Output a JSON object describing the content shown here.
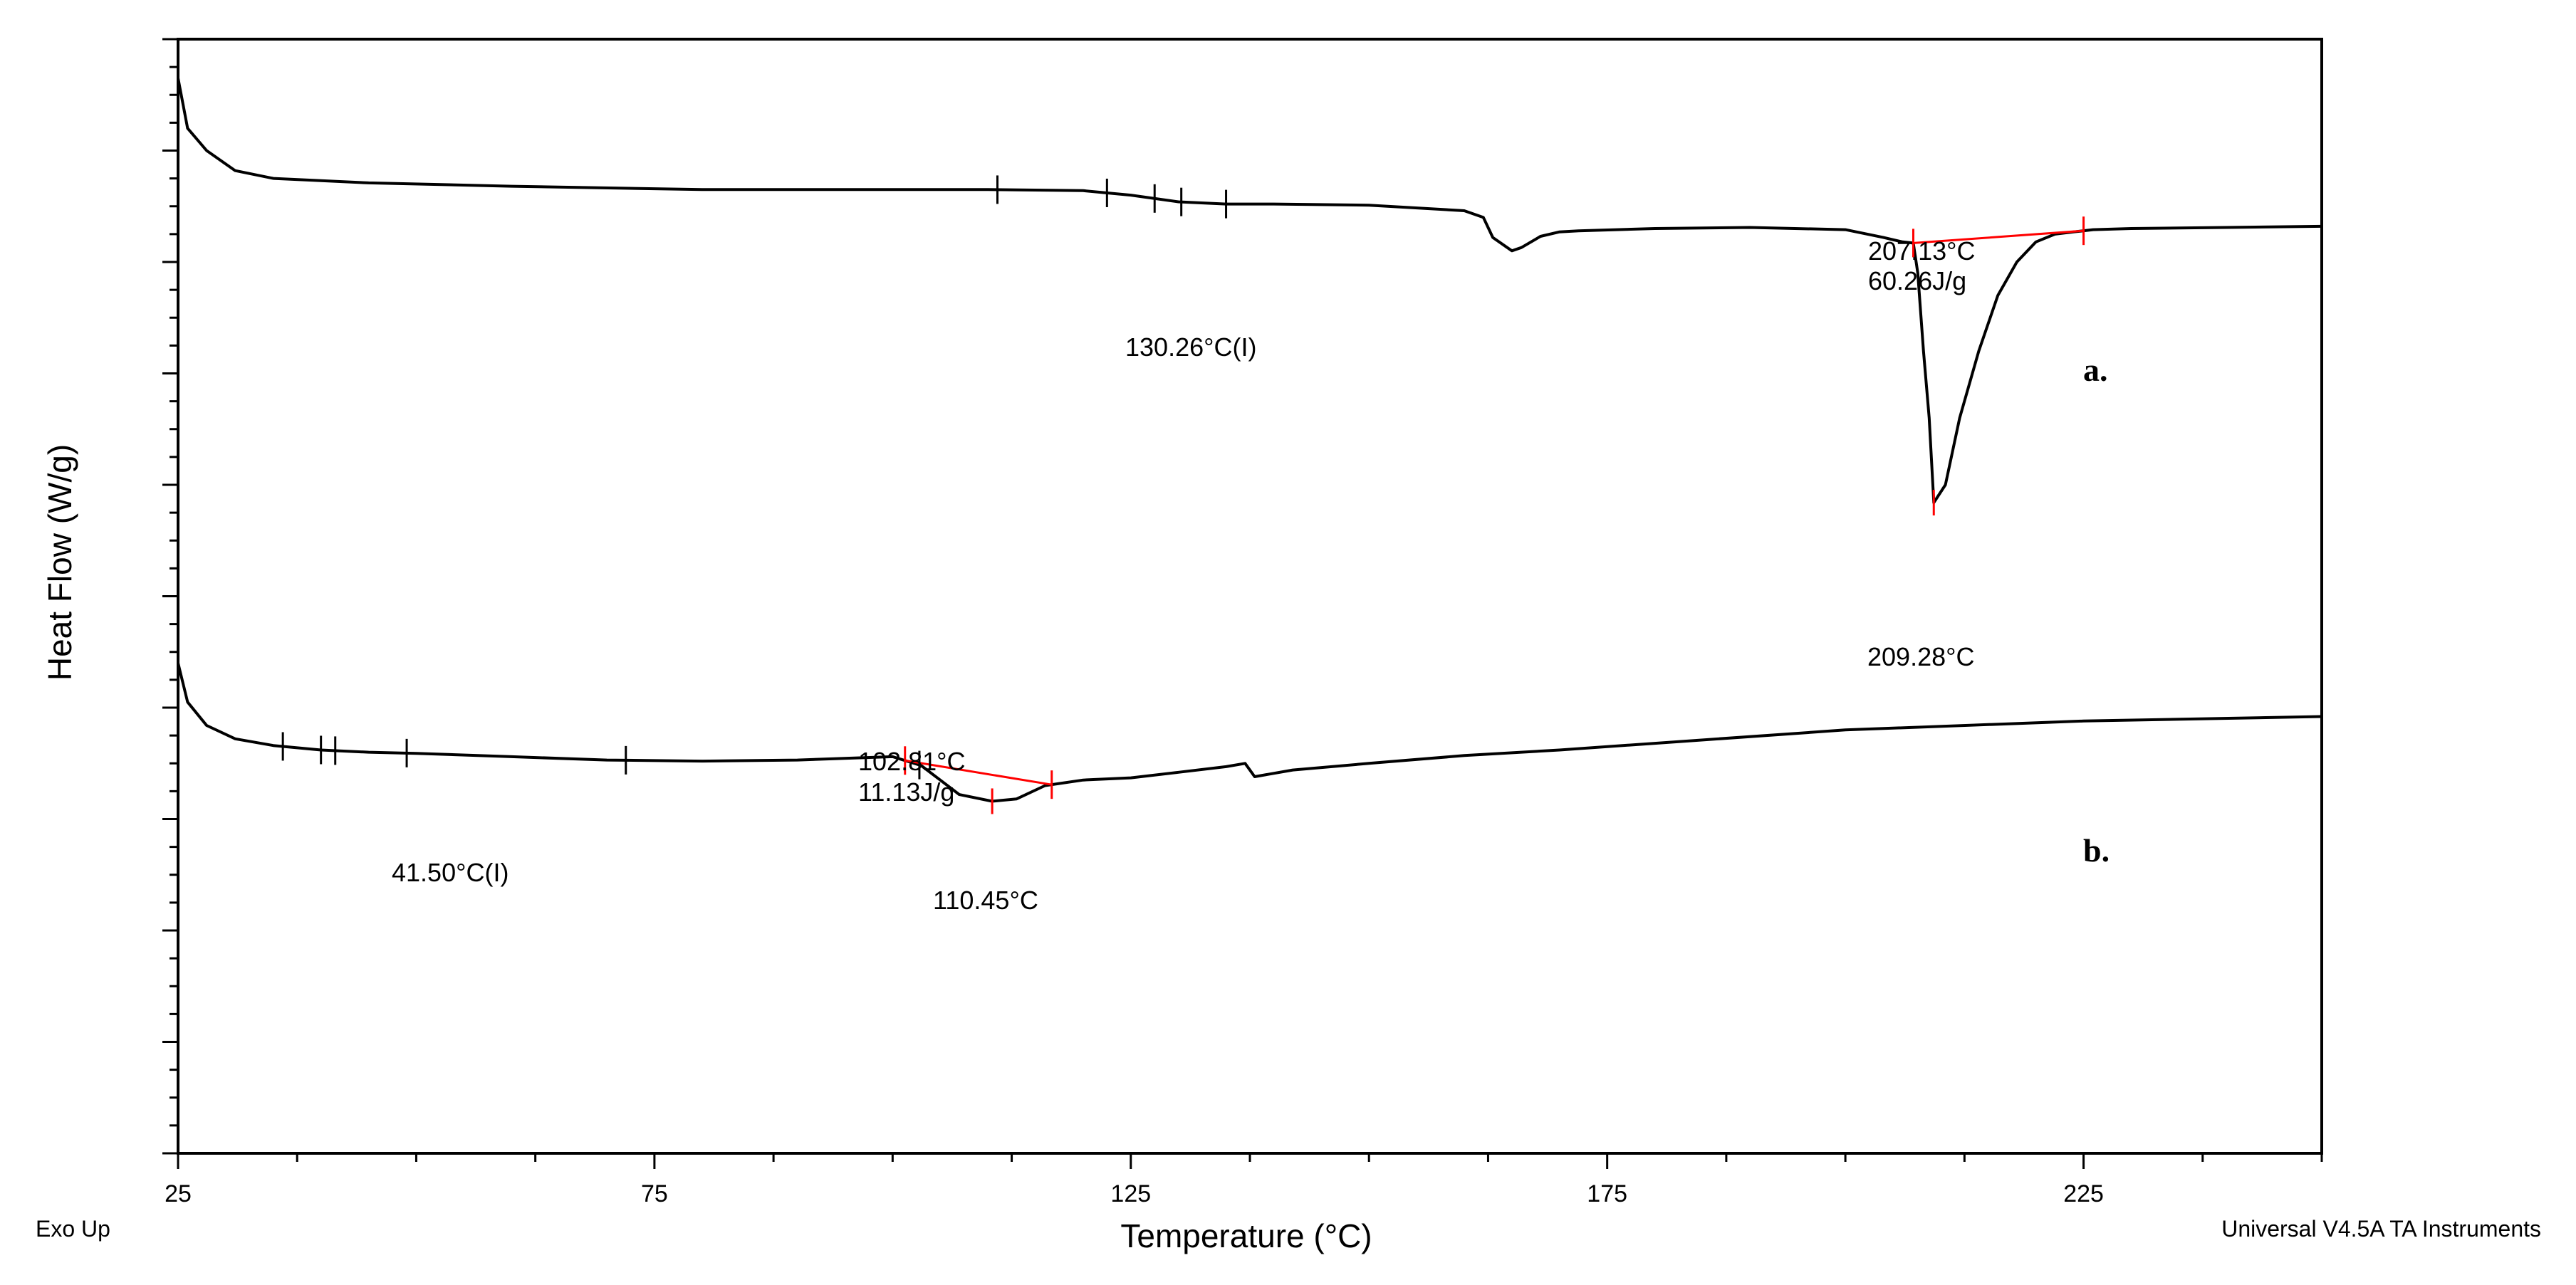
{
  "chart_data": {
    "type": "line",
    "xlabel": "Temperature (°C)",
    "ylabel": "Heat Flow (W/g)",
    "xlim": [
      25,
      250
    ],
    "x_ticks": [
      25,
      75,
      125,
      175,
      225
    ],
    "grid": false,
    "legend": "none",
    "colors": {
      "curve": "#000000",
      "integration": "#ff0000"
    },
    "series": [
      {
        "label": "a.",
        "x": [
          25,
          26,
          28,
          31,
          35,
          45,
          60,
          80,
          100,
          110,
          120,
          125,
          130,
          135,
          140,
          150,
          160,
          162,
          163,
          165,
          166,
          168,
          170,
          172,
          180,
          190,
          200,
          204,
          206,
          207.13,
          207.6,
          208.2,
          208.8,
          209.28,
          210.5,
          212,
          214,
          216,
          218,
          220,
          222,
          224,
          226,
          230,
          240,
          250
        ],
        "y": [
          0.965,
          0.92,
          0.9,
          0.882,
          0.875,
          0.871,
          0.868,
          0.865,
          0.865,
          0.865,
          0.864,
          0.86,
          0.854,
          0.852,
          0.852,
          0.851,
          0.846,
          0.84,
          0.822,
          0.81,
          0.813,
          0.823,
          0.827,
          0.828,
          0.83,
          0.831,
          0.829,
          0.822,
          0.818,
          0.817,
          0.79,
          0.72,
          0.66,
          0.584,
          0.6,
          0.66,
          0.72,
          0.77,
          0.8,
          0.818,
          0.825,
          0.827,
          0.829,
          0.83,
          0.831,
          0.832
        ]
      },
      {
        "label": "b.",
        "x": [
          25,
          26,
          28,
          31,
          35,
          40,
          45,
          50,
          60,
          70,
          80,
          90,
          100,
          103,
          105,
          107,
          110.45,
          113,
          116,
          120,
          125,
          130,
          135,
          137,
          138,
          142,
          150,
          160,
          170,
          180,
          200,
          225,
          250
        ],
        "y": [
          0.44,
          0.405,
          0.384,
          0.372,
          0.366,
          0.362,
          0.36,
          0.359,
          0.356,
          0.353,
          0.352,
          0.353,
          0.356,
          0.348,
          0.335,
          0.322,
          0.316,
          0.318,
          0.33,
          0.335,
          0.337,
          0.342,
          0.347,
          0.35,
          0.338,
          0.344,
          0.35,
          0.357,
          0.362,
          0.368,
          0.38,
          0.388,
          0.392
        ]
      }
    ],
    "integrations": [
      {
        "curve": "a.",
        "x_start": 207.13,
        "x_end": 225
      },
      {
        "curve": "b.",
        "x_start": 101.3,
        "x_end": 116.7
      }
    ],
    "markers": [
      {
        "curve": "a.",
        "x": [
          111,
          122.5,
          127.5,
          130.3,
          135
        ]
      },
      {
        "curve": "b.",
        "x": [
          36,
          40,
          41.5,
          49,
          72,
          102.81
        ]
      }
    ],
    "annotations": [
      {
        "id": "a-transition",
        "text": "130.26°C(I)",
        "x": 130.26
      },
      {
        "id": "a-onset-temp",
        "text": "207.13°C",
        "x": 207.13
      },
      {
        "id": "a-enthalpy",
        "text": "60.26J/g",
        "x": 207.13
      },
      {
        "id": "a-peak",
        "text": "209.28°C",
        "x": 209.28
      },
      {
        "id": "b-transition",
        "text": "41.50°C(I)",
        "x": 41.5
      },
      {
        "id": "b-onset-temp",
        "text": "102.81°C",
        "x": 102.81
      },
      {
        "id": "b-enthalpy",
        "text": "11.13J/g",
        "x": 102.81
      },
      {
        "id": "b-peak",
        "text": "110.45°C",
        "x": 110.45
      }
    ]
  },
  "footer": {
    "left": "Exo Up",
    "right": "Universal V4.5A TA Instruments"
  }
}
